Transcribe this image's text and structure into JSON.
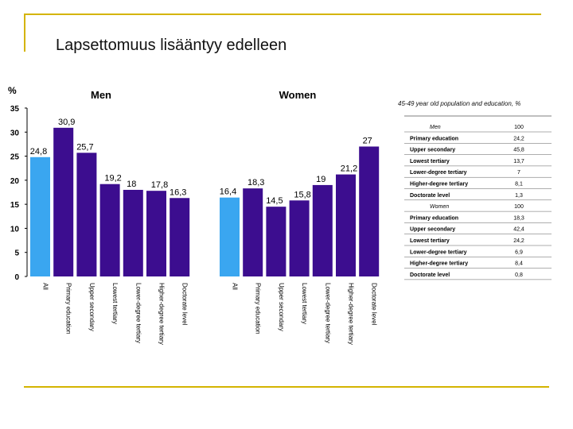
{
  "slide_title": "Lapsettomuus lisääntyy edelleen",
  "colors": {
    "accent_bar": "#3aa6f0",
    "main_bar": "#3c0d8f",
    "rule": "#d4b400"
  },
  "chart_data": {
    "type": "bar",
    "ylabel": "%",
    "ylim": [
      0,
      35
    ],
    "yticks": [
      0,
      5,
      10,
      15,
      20,
      25,
      30,
      35
    ],
    "group_labels": [
      "Men",
      "Women"
    ],
    "groups": [
      {
        "name": "Men",
        "bars": [
          {
            "label": "All",
            "value": 24.8,
            "value_label": "24,8",
            "highlight": true
          },
          {
            "label": "Primary education",
            "value": 30.9,
            "value_label": "30,9"
          },
          {
            "label": "Upper secondary",
            "value": 25.7,
            "value_label": "25,7"
          },
          {
            "label": "Lowest tertiary",
            "value": 19.2,
            "value_label": "19,2"
          },
          {
            "label": "Lower-degree tertiary",
            "value": 18,
            "value_label": "18"
          },
          {
            "label": "Higher-degree tertiary",
            "value": 17.8,
            "value_label": "17,8"
          },
          {
            "label": "Doctorate level",
            "value": 16.3,
            "value_label": "16,3"
          }
        ]
      },
      {
        "name": "Women",
        "bars": [
          {
            "label": "All",
            "value": 16.4,
            "value_label": "16,4",
            "highlight": true
          },
          {
            "label": "Primary education",
            "value": 18.3,
            "value_label": "18,3"
          },
          {
            "label": "Upper secondary",
            "value": 14.5,
            "value_label": "14,5"
          },
          {
            "label": "Lowest tertiary",
            "value": 15.8,
            "value_label": "15,8"
          },
          {
            "label": "Lower-degree tertiary",
            "value": 19,
            "value_label": "19"
          },
          {
            "label": "Higher-degree tertiary",
            "value": 21.2,
            "value_label": "21,2"
          },
          {
            "label": "Doctorate level",
            "value": 27,
            "value_label": "27"
          }
        ]
      }
    ]
  },
  "side_table": {
    "title": "45-49 year old population and education, %",
    "rows": [
      {
        "label": "Men",
        "value": "100",
        "header": true
      },
      {
        "label": "Primary education",
        "value": "24,2"
      },
      {
        "label": "Upper secondary",
        "value": "45,8"
      },
      {
        "label": "Lowest tertiary",
        "value": "13,7"
      },
      {
        "label": "Lower-degree tertiary",
        "value": "7"
      },
      {
        "label": "Higher-degree tertiary",
        "value": "8,1"
      },
      {
        "label": "Doctorate level",
        "value": "1,3"
      },
      {
        "label": "Women",
        "value": "100",
        "header": true
      },
      {
        "label": "Primary education",
        "value": "18,3"
      },
      {
        "label": "Upper secondary",
        "value": "42,4"
      },
      {
        "label": "Lowest tertiary",
        "value": "24,2"
      },
      {
        "label": "Lower-degree tertiary",
        "value": "6,9"
      },
      {
        "label": "Higher-degree tertiary",
        "value": "8,4"
      },
      {
        "label": "Doctorate level",
        "value": "0,8"
      }
    ]
  }
}
